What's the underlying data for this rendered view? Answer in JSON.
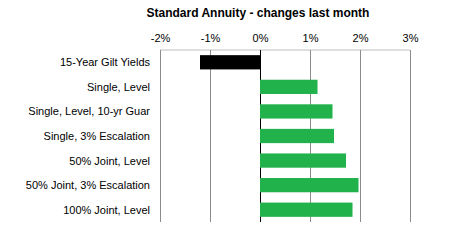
{
  "chart_data": {
    "type": "bar",
    "title": "Standard Annuity - changes last month",
    "orientation": "horizontal",
    "grid": true,
    "categories": [
      "15-Year Gilt Yields",
      "Single, Level",
      "Single, Level, 10-yr Guar",
      "Single, 3% Escalation",
      "50% Joint, Level",
      "50% Joint, 3% Escalation",
      "100% Joint, Level"
    ],
    "values": [
      -1.2,
      1.15,
      1.45,
      1.48,
      1.72,
      1.97,
      1.85
    ],
    "colors": [
      "#000000",
      "#21b24b",
      "#21b24b",
      "#21b24b",
      "#21b24b",
      "#21b24b",
      "#21b24b"
    ],
    "xlim": [
      -2,
      3
    ],
    "xticks": [
      {
        "value": -2,
        "label": "-2%"
      },
      {
        "value": -1,
        "label": "-1%"
      },
      {
        "value": 0,
        "label": "0%"
      },
      {
        "value": 1,
        "label": "1%"
      },
      {
        "value": 2,
        "label": "2%"
      },
      {
        "value": 3,
        "label": "3%"
      }
    ]
  }
}
